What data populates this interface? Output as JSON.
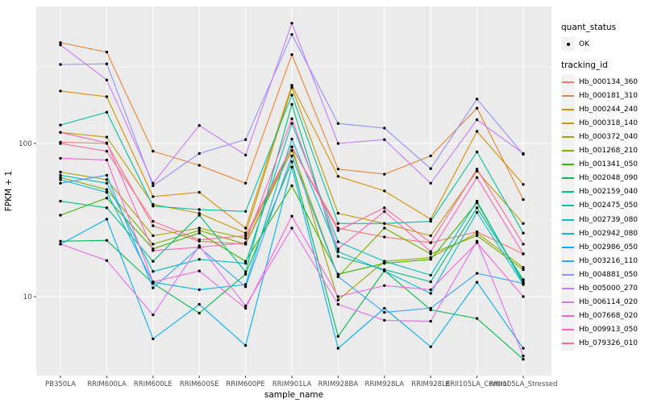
{
  "axes": {
    "x_title": "sample_name",
    "y_title": "FPKM + 1"
  },
  "legend": {
    "quant_title": "quant_status",
    "quant_items": [
      {
        "label": "OK",
        "glyph": "point"
      }
    ],
    "tracking_title": "tracking_id"
  },
  "chart_data": {
    "type": "line",
    "title": "",
    "xlabel": "sample_name",
    "ylabel": "FPKM + 1",
    "y_scale": "log10",
    "y_major_breaks": [
      10,
      100
    ],
    "y_minor_breaks": [
      3.162,
      31.62,
      316.2
    ],
    "panel_bg": "#EBEBEB",
    "grid_color": "#FFFFFF",
    "point_color": "#000000",
    "tick_label_color": "#4D4D4D",
    "legend_position": "right",
    "x_categories": [
      "PB350LA",
      "RRIM600LA",
      "RRIM600LE",
      "RRIM600SE",
      "RRIM600PE",
      "RRIM901LA",
      "RRIM928BA",
      "RRIM928LA",
      "RRIM928LE",
      "RRII105LA_Control",
      "RRII105LA_Stressed"
    ],
    "series": [
      {
        "name": "Hb_000134_360",
        "color": "#F8766D",
        "values": [
          102,
          100,
          29,
          23,
          22,
          95,
          28,
          24.5,
          22.5,
          26.5,
          19
        ]
      },
      {
        "name": "Hb_000181_310",
        "color": "#EA8331",
        "values": [
          455,
          395,
          89,
          72,
          55,
          380,
          68,
          63,
          83,
          170,
          43
        ]
      },
      {
        "name": "Hb_000244_240",
        "color": "#D89000",
        "values": [
          220,
          202,
          45,
          48,
          28,
          240,
          61,
          49,
          32,
          120,
          54
        ]
      },
      {
        "name": "Hb_000318_140",
        "color": "#C09B00",
        "values": [
          118,
          110,
          40,
          35,
          26,
          232,
          35,
          30,
          25,
          66,
          30
        ]
      },
      {
        "name": "Hb_000372_040",
        "color": "#A3A500",
        "values": [
          65,
          58,
          25,
          28,
          24,
          95,
          9.5,
          17,
          18,
          26,
          15.5
        ]
      },
      {
        "name": "Hb_001268_210",
        "color": "#7CAE00",
        "values": [
          60,
          50,
          22,
          27,
          22,
          90,
          13.5,
          28,
          19,
          25,
          15
        ]
      },
      {
        "name": "Hb_001341_050",
        "color": "#39B600",
        "values": [
          34,
          44,
          20.5,
          26,
          17,
          53,
          14,
          16.5,
          17.5,
          41,
          12.5
        ]
      },
      {
        "name": "Hb_002048_090",
        "color": "#00BB4E",
        "values": [
          23,
          23.3,
          12.2,
          7.8,
          14,
          76,
          5.5,
          14.8,
          8.2,
          7.2,
          3.9
        ]
      },
      {
        "name": "Hb_002159_040",
        "color": "#00BF7D",
        "values": [
          42,
          38,
          17,
          34,
          14.5,
          180,
          18.3,
          15,
          12.5,
          38,
          12.9
        ]
      },
      {
        "name": "Hb_002475_050",
        "color": "#00C1A3",
        "values": [
          132,
          160,
          39,
          37,
          36,
          207,
          30,
          30,
          31,
          88,
          26
        ]
      },
      {
        "name": "Hb_002739_080",
        "color": "#00BFC4",
        "values": [
          62,
          55,
          14.6,
          17.5,
          16.5,
          135,
          22.8,
          17,
          13.8,
          42,
          12.2
        ]
      },
      {
        "name": "Hb_002942_080",
        "color": "#00BADE",
        "values": [
          58,
          48,
          12.4,
          11.1,
          12,
          107,
          19.7,
          14.7,
          10.5,
          35.5,
          12
        ]
      },
      {
        "name": "Hb_002986_050",
        "color": "#00B0F6",
        "values": [
          22,
          32,
          5.3,
          8.9,
          4.8,
          70,
          4.6,
          8.4,
          4.7,
          12.4,
          4.6
        ]
      },
      {
        "name": "Hb_003216_110",
        "color": "#35A2FF",
        "values": [
          55,
          62,
          11.4,
          21,
          11.6,
          83,
          13.5,
          7.9,
          8.4,
          14.2,
          12.2
        ]
      },
      {
        "name": "Hb_004881_050",
        "color": "#9590FF",
        "values": [
          328,
          331,
          53,
          86,
          106,
          515,
          135,
          126,
          68.5,
          195,
          85
        ]
      },
      {
        "name": "Hb_005000_270",
        "color": "#C77CFF",
        "values": [
          440,
          260,
          55,
          131,
          84,
          610,
          100,
          106,
          55,
          143,
          86
        ]
      },
      {
        "name": "Hb_006114_020",
        "color": "#E76BF3",
        "values": [
          22,
          17.2,
          7.6,
          21.5,
          8.7,
          28,
          8.9,
          7.0,
          6.9,
          23,
          4.1
        ]
      },
      {
        "name": "Hb_007668_020",
        "color": "#FA62DB",
        "values": [
          80,
          78,
          12.5,
          14.7,
          8.4,
          33.5,
          10,
          11.8,
          11.1,
          22.5,
          10
        ]
      },
      {
        "name": "Hb_009913_050",
        "color": "#FF62BC",
        "values": [
          118,
          101,
          20,
          21,
          22.5,
          145,
          20.5,
          36,
          19.7,
          60,
          19
        ]
      },
      {
        "name": "Hb_079326_010",
        "color": "#FF6A98",
        "values": [
          100,
          89,
          31,
          23.5,
          25,
          95,
          27,
          38,
          22.5,
          68,
          22
        ]
      }
    ]
  }
}
